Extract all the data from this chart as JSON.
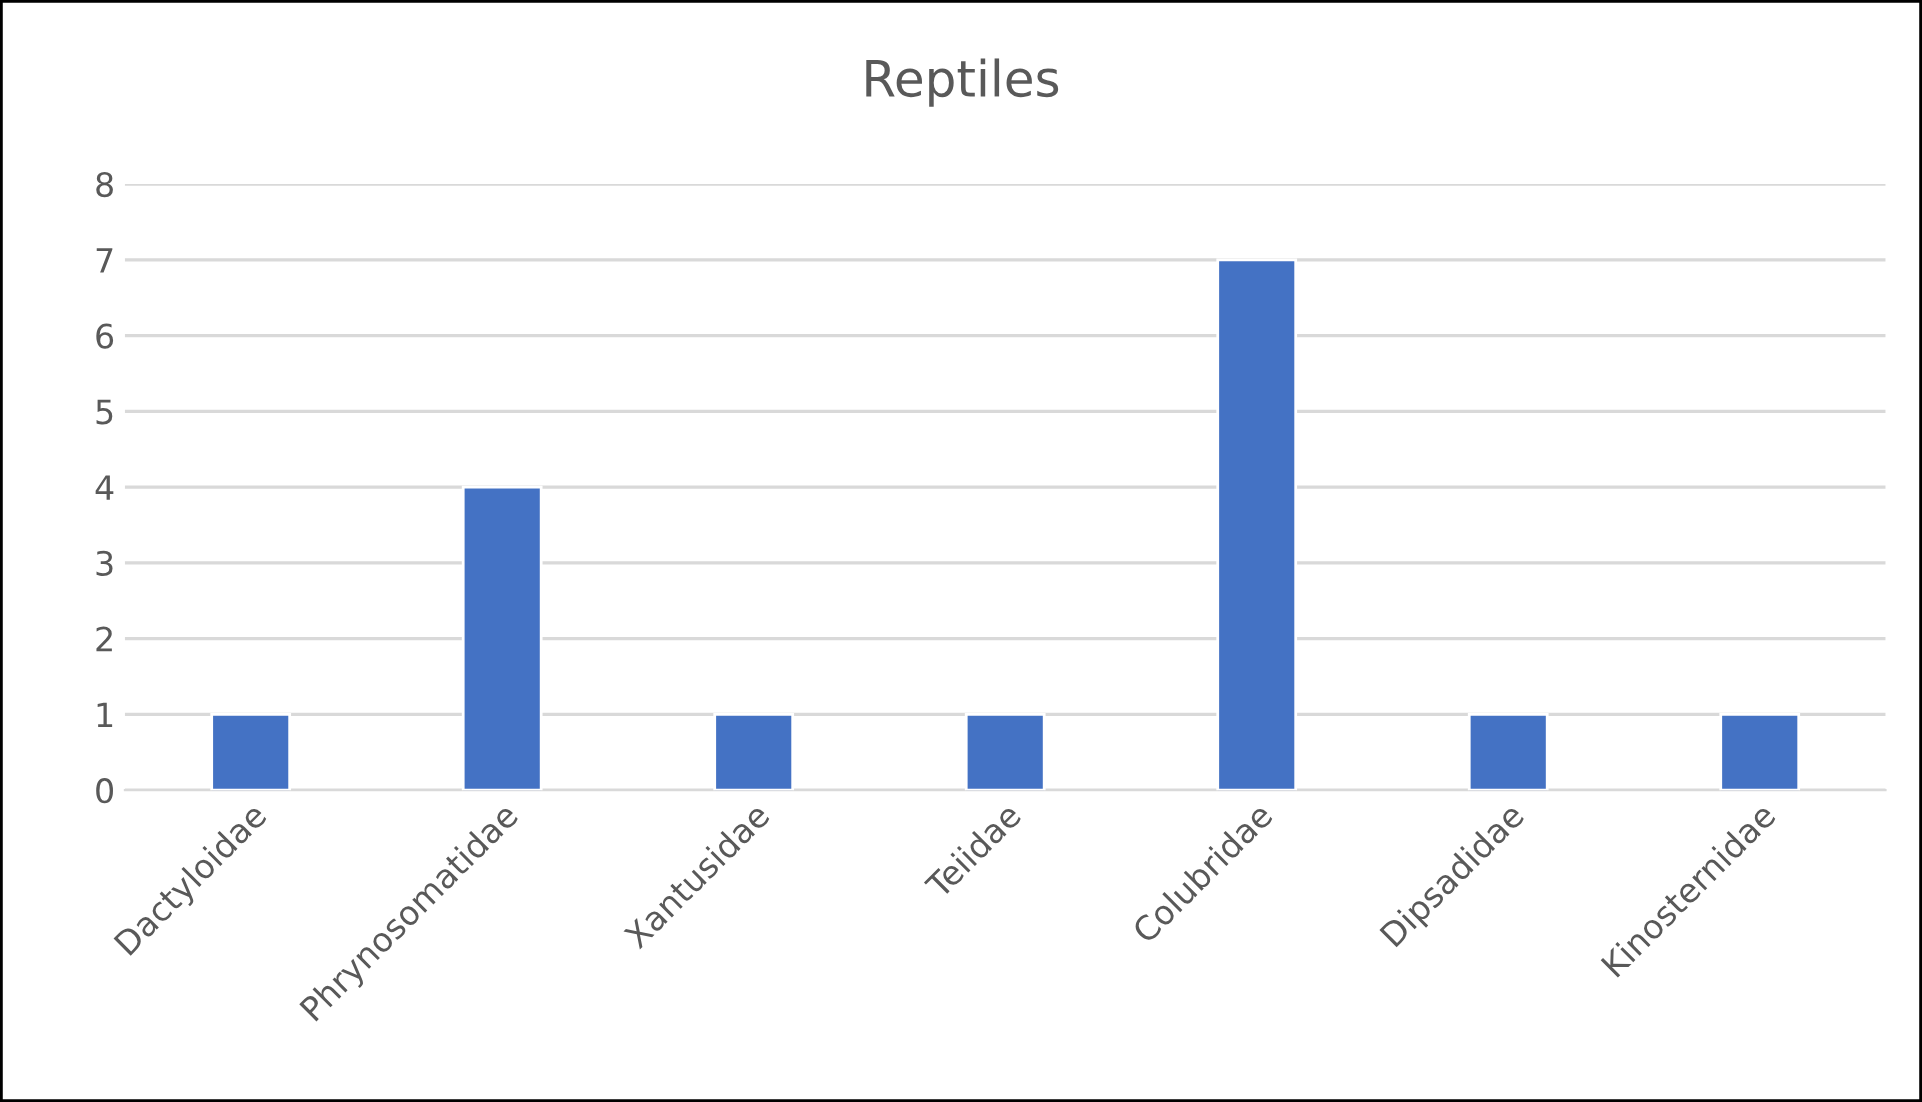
{
  "chart_data": {
    "type": "bar",
    "title": "Reptiles",
    "categories": [
      "Dactyloidae",
      "Phrynosomatidae",
      "Xantusidae",
      "Teiidae",
      "Colubridae",
      "Dipsadidae",
      "Kinosternidae"
    ],
    "values": [
      1,
      4,
      1,
      1,
      7,
      1,
      1
    ],
    "color": "#4472c4",
    "ylim": [
      0,
      8
    ],
    "yticks": [
      0,
      1,
      2,
      3,
      4,
      5,
      6,
      7,
      8
    ],
    "grid": "y",
    "legend": false
  }
}
